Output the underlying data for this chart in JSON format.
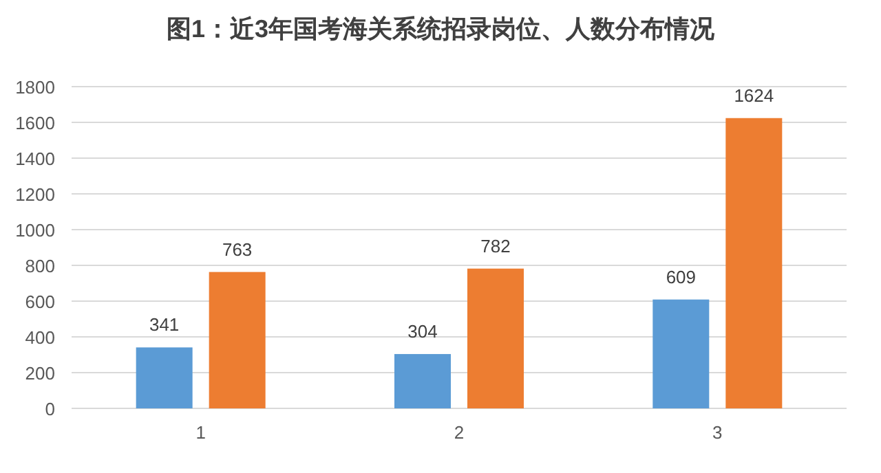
{
  "chart_data": {
    "type": "bar",
    "title": "图1：近3年国考海关系统招录岗位、人数分布情况",
    "categories": [
      "1",
      "2",
      "3"
    ],
    "series": [
      {
        "color": "#5b9bd5",
        "values": [
          341,
          304,
          609
        ]
      },
      {
        "color": "#ed7d31",
        "values": [
          763,
          782,
          1624
        ]
      }
    ],
    "ylim": [
      0,
      1800
    ],
    "yticks": [
      0,
      200,
      400,
      600,
      800,
      1000,
      1200,
      1400,
      1600,
      1800
    ],
    "grid": "y",
    "data_labels": true
  }
}
